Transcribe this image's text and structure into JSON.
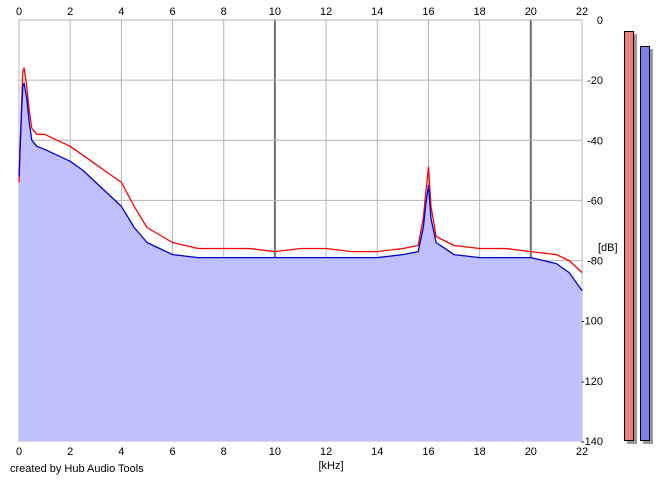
{
  "chart_data": {
    "type": "area",
    "title": "",
    "xlabel": "[kHz]",
    "ylabel": "[dB]",
    "xlim": [
      0,
      22
    ],
    "ylim": [
      -140,
      0
    ],
    "x_ticks": [
      "0",
      "2",
      "4",
      "6",
      "8",
      "10",
      "12",
      "14",
      "16",
      "18",
      "20",
      "22"
    ],
    "y_ticks": [
      "0",
      "-20",
      "-40",
      "-60",
      "-80",
      "-100",
      "-120",
      "-140"
    ],
    "grid": true,
    "legend": "none",
    "series": [
      {
        "color": "#ff0000",
        "x": [
          0,
          0.1,
          0.15,
          0.2,
          0.3,
          0.4,
          0.5,
          0.7,
          1.0,
          1.5,
          2.0,
          2.5,
          3.0,
          3.5,
          4.0,
          4.5,
          5.0,
          6.0,
          7.0,
          8.0,
          9.0,
          10.0,
          11.0,
          12.0,
          13.0,
          14.0,
          15.0,
          15.6,
          15.8,
          15.9,
          16.0,
          16.1,
          16.3,
          17.0,
          18.0,
          19.0,
          20.0,
          21.0,
          21.5,
          22.0
        ],
        "values": [
          -54,
          -28,
          -17,
          -16,
          -22,
          -30,
          -36,
          -38,
          -38,
          -40,
          -42,
          -45,
          -48,
          -51,
          -54,
          -62,
          -69,
          -74,
          -76,
          -76,
          -76,
          -77,
          -76,
          -76,
          -77,
          -77,
          -76,
          -75,
          -66,
          -57,
          -49,
          -62,
          -72,
          -75,
          -76,
          -76,
          -77,
          -78,
          -80,
          -84
        ]
      },
      {
        "color": "#0000cc",
        "x": [
          0,
          0.1,
          0.15,
          0.2,
          0.3,
          0.4,
          0.5,
          0.7,
          1.0,
          1.5,
          2.0,
          2.5,
          3.0,
          3.5,
          4.0,
          4.5,
          5.0,
          6.0,
          7.0,
          8.0,
          9.0,
          10.0,
          11.0,
          12.0,
          13.0,
          14.0,
          15.0,
          15.6,
          15.8,
          15.9,
          16.0,
          16.1,
          16.3,
          17.0,
          18.0,
          19.0,
          20.0,
          21.0,
          21.5,
          22.0
        ],
        "values": [
          -52,
          -30,
          -22,
          -21,
          -26,
          -34,
          -40,
          -42,
          -43,
          -45,
          -47,
          -50,
          -54,
          -58,
          -62,
          -69,
          -74,
          -78,
          -79,
          -79,
          -79,
          -79,
          -79,
          -79,
          -79,
          -79,
          -78,
          -77,
          -69,
          -61,
          -55,
          -66,
          -74,
          -78,
          -79,
          -79,
          -79,
          -81,
          -84,
          -90
        ]
      }
    ],
    "level_meters": [
      {
        "color": "#f08080",
        "value_db": -3.5
      },
      {
        "color": "#8080f0",
        "value_db": -8.5
      }
    ]
  },
  "footer": {
    "credit": "created by Hub Audio Tools"
  }
}
